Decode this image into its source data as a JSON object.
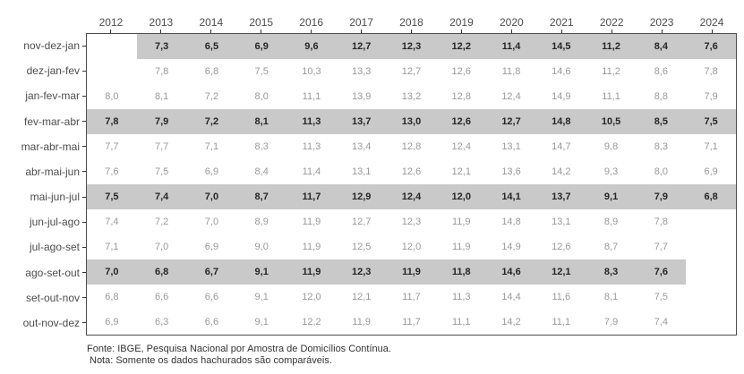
{
  "chart_data": {
    "type": "table",
    "columns": [
      "2012",
      "2013",
      "2014",
      "2015",
      "2016",
      "2017",
      "2018",
      "2019",
      "2020",
      "2021",
      "2022",
      "2023",
      "2024"
    ],
    "rows": [
      {
        "label": "nov-dez-jan",
        "highlighted": true,
        "values": [
          "",
          "7,3",
          "6,5",
          "6,9",
          "9,6",
          "12,7",
          "12,3",
          "12,2",
          "11,4",
          "14,5",
          "11,2",
          "8,4",
          "7,6"
        ]
      },
      {
        "label": "dez-jan-fev",
        "highlighted": false,
        "values": [
          "",
          "7,8",
          "6,8",
          "7,5",
          "10,3",
          "13,3",
          "12,7",
          "12,6",
          "11,8",
          "14,6",
          "11,2",
          "8,6",
          "7,8"
        ]
      },
      {
        "label": "jan-fev-mar",
        "highlighted": false,
        "values": [
          "8,0",
          "8,1",
          "7,2",
          "8,0",
          "11,1",
          "13,9",
          "13,2",
          "12,8",
          "12,4",
          "14,9",
          "11,1",
          "8,8",
          "7,9"
        ]
      },
      {
        "label": "fev-mar-abr",
        "highlighted": true,
        "values": [
          "7,8",
          "7,9",
          "7,2",
          "8,1",
          "11,3",
          "13,7",
          "13,0",
          "12,6",
          "12,7",
          "14,8",
          "10,5",
          "8,5",
          "7,5"
        ]
      },
      {
        "label": "mar-abr-mai",
        "highlighted": false,
        "values": [
          "7,7",
          "7,7",
          "7,1",
          "8,3",
          "11,3",
          "13,4",
          "12,8",
          "12,4",
          "13,1",
          "14,7",
          "9,8",
          "8,3",
          "7,1"
        ]
      },
      {
        "label": "abr-mai-jun",
        "highlighted": false,
        "values": [
          "7,6",
          "7,5",
          "6,9",
          "8,4",
          "11,4",
          "13,1",
          "12,6",
          "12,1",
          "13,6",
          "14,2",
          "9,3",
          "8,0",
          "6,9"
        ]
      },
      {
        "label": "mai-jun-jul",
        "highlighted": true,
        "values": [
          "7,5",
          "7,4",
          "7,0",
          "8,7",
          "11,7",
          "12,9",
          "12,4",
          "12,0",
          "14,1",
          "13,7",
          "9,1",
          "7,9",
          "6,8"
        ]
      },
      {
        "label": "jun-jul-ago",
        "highlighted": false,
        "values": [
          "7,4",
          "7,2",
          "7,0",
          "8,9",
          "11,9",
          "12,7",
          "12,3",
          "11,9",
          "14,8",
          "13,1",
          "8,9",
          "7,8",
          ""
        ]
      },
      {
        "label": "jul-ago-set",
        "highlighted": false,
        "values": [
          "7,1",
          "7,0",
          "6,9",
          "9,0",
          "11,9",
          "12,5",
          "12,0",
          "11,9",
          "14,9",
          "12,6",
          "8,7",
          "7,7",
          ""
        ]
      },
      {
        "label": "ago-set-out",
        "highlighted": true,
        "values": [
          "7,0",
          "6,8",
          "6,7",
          "9,1",
          "11,9",
          "12,3",
          "11,9",
          "11,8",
          "14,6",
          "12,1",
          "8,3",
          "7,6",
          ""
        ]
      },
      {
        "label": "set-out-nov",
        "highlighted": false,
        "values": [
          "6,8",
          "6,6",
          "6,6",
          "9,1",
          "12,0",
          "12,1",
          "11,7",
          "11,3",
          "14,4",
          "11,6",
          "8,1",
          "7,5",
          ""
        ]
      },
      {
        "label": "out-nov-dez",
        "highlighted": false,
        "values": [
          "6,9",
          "6,3",
          "6,6",
          "9,1",
          "12,2",
          "11,9",
          "11,7",
          "11,1",
          "14,2",
          "11,1",
          "7,9",
          "7,4",
          ""
        ]
      }
    ],
    "title": "",
    "xlabel": "",
    "ylabel": "",
    "legend": "none",
    "grid": "off"
  },
  "footer": {
    "source": "Fonte: IBGE, Pesquisa Nacional por Amostra de Domicílios Contínua.",
    "note": "Nota: Somente os dados hachurados são comparáveis."
  },
  "colors": {
    "highlight_band": "#c9c9c9",
    "value_text": "#999999",
    "value_text_highlight": "#262626",
    "axis_text": "#4d4d4d",
    "panel_border": "#4d4d4d",
    "tick": "#333333",
    "footer_text": "#333333",
    "background": "#ffffff"
  }
}
